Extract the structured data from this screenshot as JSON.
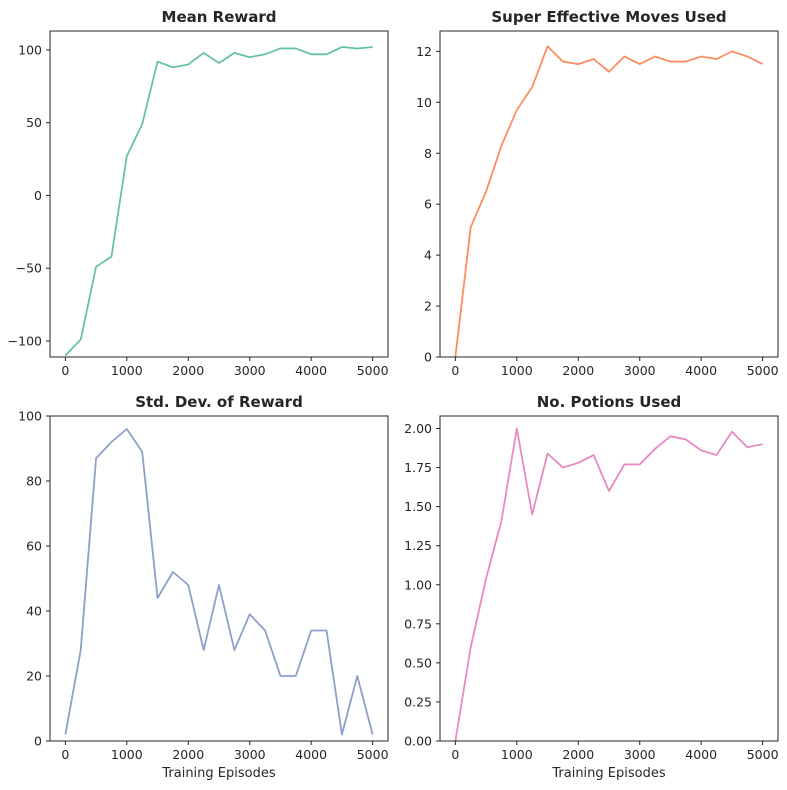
{
  "chart_data": [
    {
      "type": "line",
      "title": "Mean Reward",
      "xlabel": "",
      "ylabel": "",
      "color": "#66c2a5",
      "xlim": [
        -250,
        5250
      ],
      "ylim": [
        -111,
        113
      ],
      "xticks": [
        0,
        1000,
        2000,
        3000,
        4000,
        5000
      ],
      "xtick_labels": [
        "0",
        "1000",
        "2000",
        "3000",
        "4000",
        "5000"
      ],
      "yticks": [
        -100,
        -50,
        0,
        50,
        100
      ],
      "ytick_labels": [
        "−100",
        "−50",
        "0",
        "50",
        "100"
      ],
      "grid": false,
      "x": [
        0,
        250,
        500,
        750,
        1000,
        1250,
        1500,
        1750,
        2000,
        2250,
        2500,
        2750,
        3000,
        3250,
        3500,
        3750,
        4000,
        4250,
        4500,
        4750,
        5000
      ],
      "y": [
        -110,
        -99,
        -49,
        -42,
        27,
        49,
        92,
        88,
        90,
        98,
        91,
        98,
        95,
        97,
        101,
        101,
        97,
        97,
        102,
        101,
        102
      ]
    },
    {
      "type": "line",
      "title": "Super Effective Moves Used",
      "xlabel": "",
      "ylabel": "",
      "color": "#fc8d62",
      "xlim": [
        -250,
        5250
      ],
      "ylim": [
        0,
        12.8
      ],
      "xticks": [
        0,
        1000,
        2000,
        3000,
        4000,
        5000
      ],
      "xtick_labels": [
        "0",
        "1000",
        "2000",
        "3000",
        "4000",
        "5000"
      ],
      "yticks": [
        0,
        2,
        4,
        6,
        8,
        10,
        12
      ],
      "ytick_labels": [
        "0",
        "2",
        "4",
        "6",
        "8",
        "10",
        "12"
      ],
      "grid": false,
      "x": [
        0,
        250,
        500,
        750,
        1000,
        1250,
        1500,
        1750,
        2000,
        2250,
        2500,
        2750,
        3000,
        3250,
        3500,
        3750,
        4000,
        4250,
        4500,
        4750,
        5000
      ],
      "y": [
        0,
        5.1,
        6.5,
        8.3,
        9.7,
        10.6,
        12.2,
        11.6,
        11.5,
        11.7,
        11.2,
        11.8,
        11.5,
        11.8,
        11.6,
        11.6,
        11.8,
        11.7,
        12.0,
        11.8,
        11.5
      ]
    },
    {
      "type": "line",
      "title": "Std. Dev. of Reward",
      "xlabel": "Training Episodes",
      "ylabel": "",
      "color": "#8da0cb",
      "xlim": [
        -250,
        5250
      ],
      "ylim": [
        0,
        100
      ],
      "xticks": [
        0,
        1000,
        2000,
        3000,
        4000,
        5000
      ],
      "xtick_labels": [
        "0",
        "1000",
        "2000",
        "3000",
        "4000",
        "5000"
      ],
      "yticks": [
        0,
        20,
        40,
        60,
        80,
        100
      ],
      "ytick_labels": [
        "0",
        "20",
        "40",
        "60",
        "80",
        "100"
      ],
      "grid": false,
      "x": [
        0,
        250,
        500,
        750,
        1000,
        1250,
        1500,
        1750,
        2000,
        2250,
        2500,
        2750,
        3000,
        3250,
        3500,
        3750,
        4000,
        4250,
        4500,
        4750,
        5000
      ],
      "y": [
        2,
        28,
        87,
        92,
        96,
        89,
        44,
        52,
        48,
        28,
        48,
        28,
        39,
        34,
        20,
        20,
        34,
        34,
        2,
        20,
        2
      ]
    },
    {
      "type": "line",
      "title": "No. Potions Used",
      "xlabel": "Training Episodes",
      "ylabel": "",
      "color": "#e78ac3",
      "xlim": [
        -250,
        5250
      ],
      "ylim": [
        0,
        2.08
      ],
      "xticks": [
        0,
        1000,
        2000,
        3000,
        4000,
        5000
      ],
      "xtick_labels": [
        "0",
        "1000",
        "2000",
        "3000",
        "4000",
        "5000"
      ],
      "yticks": [
        0,
        0.25,
        0.5,
        0.75,
        1.0,
        1.25,
        1.5,
        1.75,
        2.0
      ],
      "ytick_labels": [
        "0.00",
        "0.25",
        "0.50",
        "0.75",
        "1.00",
        "1.25",
        "1.50",
        "1.75",
        "2.00"
      ],
      "grid": false,
      "x": [
        0,
        250,
        500,
        750,
        1000,
        1250,
        1500,
        1750,
        2000,
        2250,
        2500,
        2750,
        3000,
        3250,
        3500,
        3750,
        4000,
        4250,
        4500,
        4750,
        5000
      ],
      "y": [
        0,
        0.6,
        1.04,
        1.41,
        2.0,
        1.45,
        1.84,
        1.75,
        1.78,
        1.83,
        1.6,
        1.77,
        1.77,
        1.87,
        1.95,
        1.93,
        1.86,
        1.83,
        1.98,
        1.88,
        1.9
      ]
    }
  ]
}
